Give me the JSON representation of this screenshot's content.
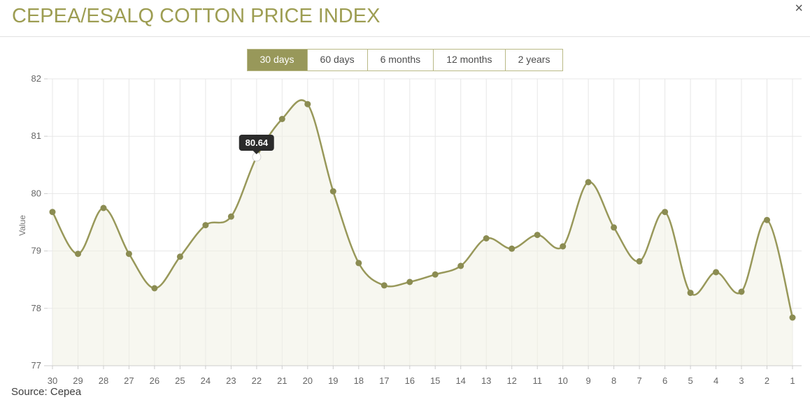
{
  "header": {
    "title": "CEPEA/ESALQ COTTON PRICE INDEX",
    "close_glyph": "×"
  },
  "range_buttons": [
    {
      "label": "30 days",
      "active": true
    },
    {
      "label": "60 days",
      "active": false
    },
    {
      "label": "6 months",
      "active": false
    },
    {
      "label": "12 months",
      "active": false
    },
    {
      "label": "2 years",
      "active": false
    }
  ],
  "tooltip": {
    "value": "80.64",
    "day": "22"
  },
  "source": "Source: Cepea",
  "colors": {
    "accent": "#98985a",
    "dot": "#8b8c52",
    "title": "#9d9d52",
    "area_fill": "#f0f0e4",
    "grid": "#e7e7e7",
    "axis": "#cccccc",
    "tick_text": "#666666",
    "tooltip_bg": "#2b2b2b",
    "tooltip_text": "#ffffff"
  },
  "chart_data": {
    "type": "area",
    "title": "CEPEA/ESALQ COTTON PRICE INDEX",
    "x": [
      "30",
      "29",
      "28",
      "27",
      "26",
      "25",
      "24",
      "23",
      "22",
      "21",
      "20",
      "19",
      "18",
      "17",
      "16",
      "15",
      "14",
      "13",
      "12",
      "11",
      "10",
      "9",
      "8",
      "7",
      "6",
      "5",
      "4",
      "3",
      "2",
      "1"
    ],
    "values": [
      79.68,
      78.95,
      79.75,
      78.95,
      78.35,
      78.9,
      79.45,
      79.6,
      80.64,
      81.3,
      81.56,
      80.04,
      78.79,
      78.4,
      78.46,
      78.59,
      78.74,
      79.22,
      79.04,
      79.28,
      79.08,
      80.2,
      79.41,
      78.82,
      79.68,
      78.27,
      78.63,
      78.29,
      79.54,
      77.84
    ],
    "xlabel": "",
    "ylabel": "Value",
    "ylim": [
      77,
      82
    ],
    "yticks": [
      82,
      81,
      80,
      79,
      78,
      77
    ],
    "grid": true,
    "legend": false,
    "highlight": {
      "x": "22",
      "index": 8,
      "value": 80.64,
      "label": "80.64"
    }
  }
}
